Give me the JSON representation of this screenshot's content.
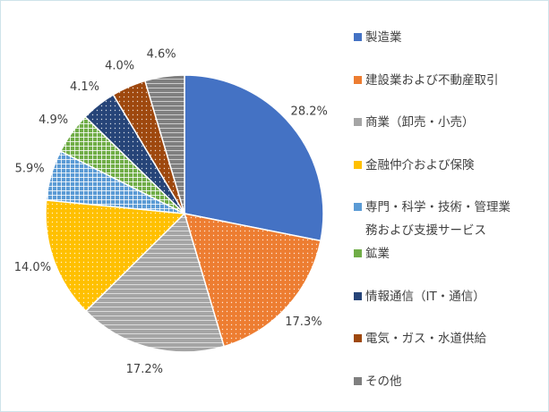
{
  "chart_data": {
    "type": "pie",
    "categories": [
      "製造業",
      "建設業および不動産取引",
      "商業（卸売・小売）",
      "金融仲介および保険",
      "専門・科学・技術・管理業務および支援サービス",
      "鉱業",
      "情報通信（IT・通信）",
      "電気・ガス・水道供給",
      "その他"
    ],
    "values": [
      28.2,
      17.3,
      17.2,
      14.0,
      5.9,
      4.9,
      4.1,
      4.0,
      4.6
    ],
    "value_labels": [
      "28.2%",
      "17.3%",
      "17.2%",
      "14.0%",
      "5.9%",
      "4.9%",
      "4.1%",
      "4.0%",
      "4.6%"
    ],
    "colors": [
      "#4472c4",
      "#ed7d31",
      "#a5a5a5",
      "#ffc000",
      "#5b9bd5",
      "#70ad47",
      "#264478",
      "#9e480e",
      "#7f7f7f"
    ],
    "legend": "right"
  }
}
